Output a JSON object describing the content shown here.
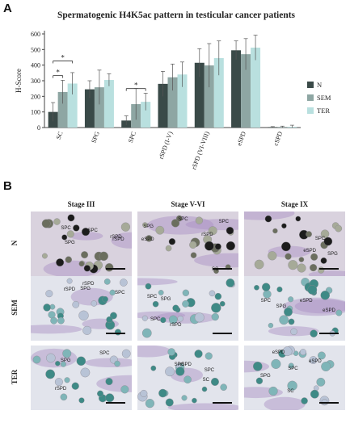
{
  "panel_a_letter": "A",
  "panel_b_letter": "B",
  "chart_data": {
    "type": "bar",
    "title": "Spermatogenic H4K5ac pattern in testicular cancer patients",
    "ylabel": "H-Score",
    "xlabel": "",
    "ylim": [
      0,
      600
    ],
    "yticks": [
      0,
      100,
      200,
      300,
      400,
      500,
      600
    ],
    "categories": [
      "SC",
      "SPG",
      "SPC",
      "rSPD (I-V)",
      "rSPD (VI-VIII)",
      "eSPD",
      "cSPD"
    ],
    "series": [
      {
        "name": "N",
        "color": "#3a4a48",
        "values": [
          100,
          245,
          45,
          280,
          415,
          495,
          3
        ],
        "errors": [
          60,
          55,
          30,
          80,
          90,
          60,
          3
        ]
      },
      {
        "name": "SEM",
        "color": "#8ea6a3",
        "values": [
          228,
          258,
          150,
          322,
          398,
          470,
          4
        ],
        "errors": [
          75,
          110,
          100,
          85,
          140,
          100,
          5
        ]
      },
      {
        "name": "TER",
        "color": "#b9e0df",
        "values": [
          282,
          305,
          165,
          340,
          445,
          512,
          5
        ],
        "errors": [
          70,
          40,
          55,
          80,
          110,
          80,
          10
        ]
      }
    ],
    "annotations": [
      {
        "category": "SC",
        "from": "N",
        "to": "SEM",
        "text": "*"
      },
      {
        "category": "SC",
        "from": "N",
        "to": "TER",
        "text": "*"
      },
      {
        "category": "SPC",
        "from": "N",
        "to": "TER",
        "text": "*"
      }
    ],
    "legend": "right"
  },
  "micrographs": {
    "columns": [
      "Stage III",
      "Stage V-VI",
      "Stage IX"
    ],
    "rows": [
      "N",
      "SEM",
      "TER"
    ],
    "tiles": [
      [
        {
          "labels": [
            "SPC",
            "rSPD",
            "SPC",
            "rSPD",
            "SPG"
          ],
          "stain": "dark"
        },
        {
          "labels": [
            "eSPD",
            "SPC",
            "rSPD",
            "SPC",
            "SPG",
            "SC"
          ],
          "stain": "dark"
        },
        {
          "labels": [
            "eSPD",
            "SPG",
            "SPC"
          ],
          "stain": "dark"
        }
      ],
      [
        {
          "labels": [
            "SPG",
            "rSPD",
            "SPC",
            "rSPD"
          ],
          "stain": "teal"
        },
        {
          "labels": [
            "SPG",
            "SPC",
            "SPC",
            "rSPD"
          ],
          "stain": "teal"
        },
        {
          "labels": [
            "eSPD",
            "eSPD",
            "SPC",
            "SPG"
          ],
          "stain": "teal"
        }
      ],
      [
        {
          "labels": [
            "SPC",
            "rSPD",
            "SPG"
          ],
          "stain": "teal"
        },
        {
          "labels": [
            "rSPD",
            "SPC",
            "SPG",
            "SC"
          ],
          "stain": "teal"
        },
        {
          "labels": [
            "SPG",
            "eSPD",
            "SPC",
            "eSPD",
            "SC"
          ],
          "stain": "teal"
        }
      ]
    ]
  }
}
